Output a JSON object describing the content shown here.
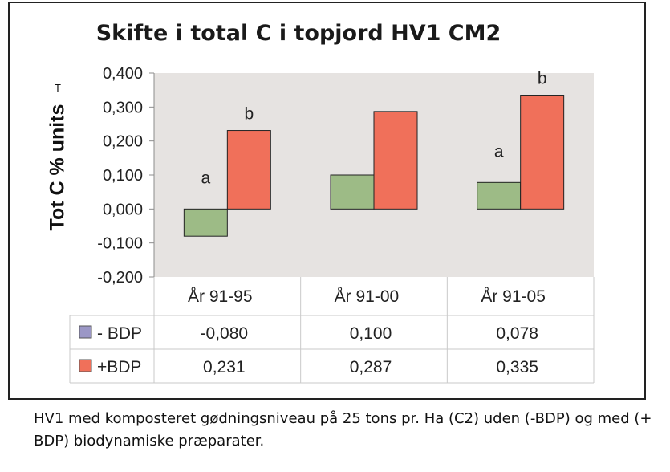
{
  "chart_data": {
    "type": "bar",
    "title": "Skifte i total C i topjord HV1 CM2",
    "ylabel": "Tot C % units",
    "ylabel_mark": "T",
    "categories": [
      "År 91-95",
      "År 91-00",
      "År 91-05"
    ],
    "ylim": [
      -0.2,
      0.4
    ],
    "yticks": [
      "0,400",
      "0,300",
      "0,200",
      "0,100",
      "0,000",
      "-0,100",
      "-0,200"
    ],
    "ytick_values": [
      0.4,
      0.3,
      0.2,
      0.1,
      0.0,
      -0.1,
      -0.2
    ],
    "grid": false,
    "series": [
      {
        "name": "- BDP",
        "color": "#9dbb86",
        "values": [
          -0.08,
          0.1,
          0.078
        ],
        "labels": [
          "-0,080",
          "0,100",
          "0,078"
        ],
        "legend_color": "#9b97c6"
      },
      {
        "name": "+BDP",
        "color": "#f0705a",
        "values": [
          0.231,
          0.287,
          0.335
        ],
        "labels": [
          "0,231",
          "0,287",
          "0,335"
        ],
        "legend_color": "#f0705a"
      }
    ],
    "annotations": [
      {
        "text": "a",
        "category": 0,
        "series": 0
      },
      {
        "text": "b",
        "category": 0,
        "series": 1
      },
      {
        "text": "a",
        "category": 2,
        "series": 0
      },
      {
        "text": "b",
        "category": 2,
        "series": 1
      }
    ],
    "plot_background": "#e6e3e1"
  },
  "caption": "HV1 med komposteret gødningsniveau på 25 tons pr. Ha (C2) uden (-BDP) og med (+ BDP) biodynamiske præparater."
}
